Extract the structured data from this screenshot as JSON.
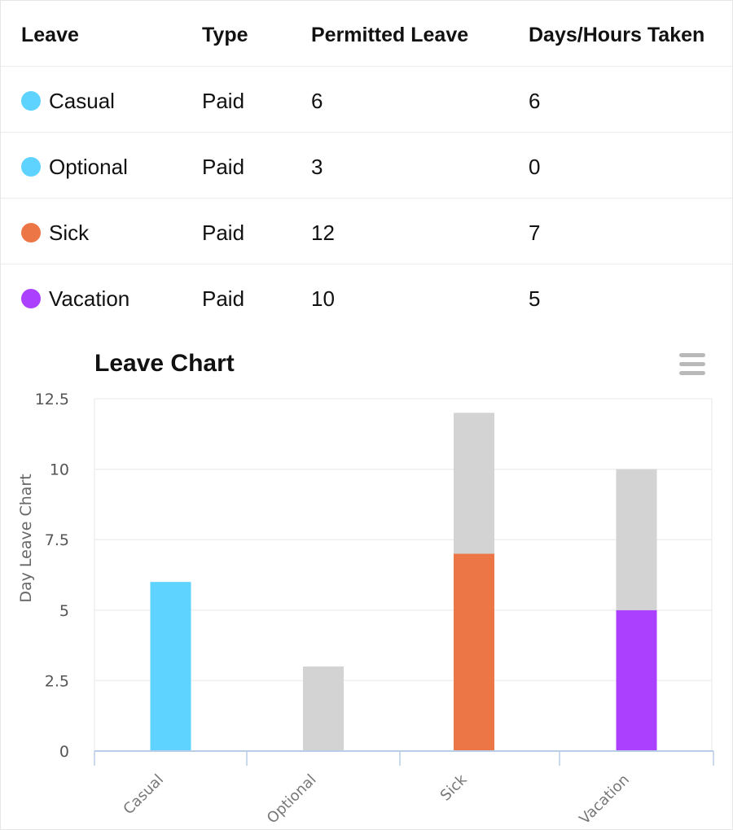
{
  "table": {
    "headers": {
      "leave": "Leave",
      "type": "Type",
      "permitted": "Permitted Leave",
      "taken": "Days/Hours Taken"
    },
    "rows": [
      {
        "name": "Casual",
        "type": "Paid",
        "permitted": "6",
        "taken": "6",
        "color": "#5fd3ff"
      },
      {
        "name": "Optional",
        "type": "Paid",
        "permitted": "3",
        "taken": "0",
        "color": "#5fd3ff"
      },
      {
        "name": "Sick",
        "type": "Paid",
        "permitted": "12",
        "taken": "7",
        "color": "#ec7645"
      },
      {
        "name": "Vacation",
        "type": "Paid",
        "permitted": "10",
        "taken": "5",
        "color": "#ab40ff"
      }
    ]
  },
  "chart": {
    "menu_icon": "hamburger-menu-icon"
  },
  "chart_data": {
    "type": "bar",
    "stacked": true,
    "title": "Leave Chart",
    "xlabel": "",
    "ylabel": "Day Leave Chart",
    "ylim": [
      0,
      12.5
    ],
    "yticks": [
      "0",
      "2.5",
      "5",
      "7.5",
      "10",
      "12.5"
    ],
    "categories": [
      "Casual",
      "Optional",
      "Sick",
      "Vacation"
    ],
    "series": [
      {
        "values": [
          6,
          0,
          7,
          5
        ],
        "colors": [
          "#5fd3ff",
          "#5fd3ff",
          "#ec7645",
          "#ab40ff"
        ]
      },
      {
        "values": [
          0,
          3,
          5,
          5
        ],
        "color": "#d3d3d3"
      }
    ],
    "grid": true,
    "axis_color": "#b9cde6",
    "grid_color": "#efefef"
  }
}
